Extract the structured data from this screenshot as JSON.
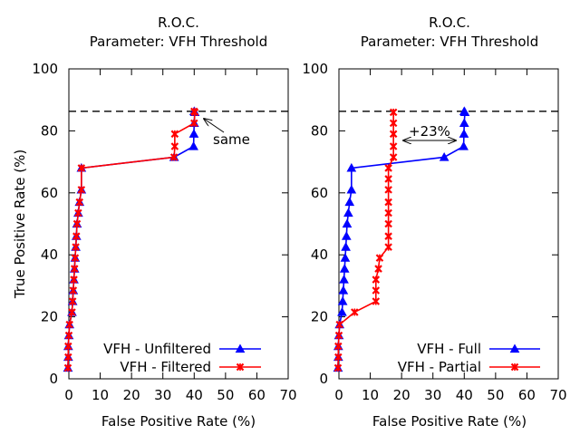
{
  "chart_data": [
    {
      "type": "line",
      "title": "R.O.C.",
      "subtitle": "Parameter: VFH Threshold",
      "xlabel": "False Positive Rate (%)",
      "ylabel": "True Positive Rate (%)",
      "xlim": [
        0,
        70
      ],
      "ylim": [
        0,
        100
      ],
      "xticks": [
        0,
        10,
        20,
        30,
        40,
        50,
        60,
        70
      ],
      "yticks": [
        0,
        20,
        40,
        60,
        80,
        100
      ],
      "reference_line": 86.3,
      "legend_position": "bottom-right",
      "annotation": "same",
      "series": [
        {
          "name": "VFH - Unfiltered",
          "color": "#0000ff",
          "marker": "triangle",
          "x": [
            -0.3,
            -0.2,
            -0.2,
            0,
            0.2,
            1,
            1.2,
            1.4,
            1.6,
            1.8,
            2,
            2.2,
            2.4,
            2.6,
            3,
            3.4,
            4,
            4,
            33.6,
            39.8,
            39.9,
            40,
            40.2,
            40
          ],
          "y": [
            3.5,
            7,
            10.5,
            14,
            17.5,
            21.5,
            25,
            28.5,
            32,
            35.5,
            39,
            42.5,
            46,
            50,
            53.5,
            57,
            61,
            68,
            71.5,
            75,
            79,
            82.5,
            86,
            86.3
          ]
        },
        {
          "name": "VFH - Filtered",
          "color": "#ff0000",
          "marker": "x",
          "x": [
            -0.3,
            -0.2,
            -0.2,
            0,
            0.2,
            1,
            1.2,
            1.4,
            1.6,
            1.8,
            2,
            2.2,
            2.4,
            2.6,
            3,
            3.4,
            4,
            4,
            33.6,
            33.8,
            33.8,
            40,
            40.2,
            40
          ],
          "y": [
            3.5,
            7,
            10.5,
            14,
            17.5,
            21.5,
            25,
            28.5,
            32,
            35.5,
            39,
            42.5,
            46,
            50,
            53.5,
            57,
            61,
            68,
            71.5,
            75,
            79,
            82.5,
            86,
            86.3
          ]
        }
      ]
    },
    {
      "type": "line",
      "title": "R.O.C.",
      "subtitle": "Parameter: VFH Threshold",
      "xlabel": "False Positive Rate (%)",
      "ylabel": "",
      "xlim": [
        0,
        70
      ],
      "ylim": [
        0,
        100
      ],
      "xticks": [
        0,
        10,
        20,
        30,
        40,
        50,
        60,
        70
      ],
      "yticks": [
        0,
        20,
        40,
        60,
        80,
        100
      ],
      "reference_line": 86.3,
      "legend_position": "bottom-right",
      "annotation": "+23%",
      "series": [
        {
          "name": "VFH - Full",
          "color": "#0000ff",
          "marker": "triangle",
          "x": [
            -0.3,
            -0.2,
            -0.2,
            0,
            0.2,
            1,
            1.2,
            1.4,
            1.6,
            1.8,
            2,
            2.2,
            2.4,
            2.6,
            3,
            3.4,
            4,
            4,
            33.6,
            39.8,
            39.9,
            40,
            40.2,
            40
          ],
          "y": [
            3.5,
            7,
            10.5,
            14,
            17.5,
            21.5,
            25,
            28.5,
            32,
            35.5,
            39,
            42.5,
            46,
            50,
            53.5,
            57,
            61,
            68,
            71.5,
            75,
            79,
            82.5,
            86,
            86.3
          ]
        },
        {
          "name": "VFH - Partial",
          "color": "#ff0000",
          "marker": "x",
          "x": [
            -0.3,
            -0.2,
            -0.2,
            0,
            0.2,
            5,
            11.8,
            11.8,
            11.8,
            12.6,
            13,
            15.8,
            15.8,
            15.8,
            15.8,
            15.8,
            15.8,
            15.8,
            15.8,
            17.4,
            17.4,
            17.4,
            17.4,
            17.4
          ],
          "y": [
            3.5,
            7,
            10.5,
            14,
            17.5,
            21.5,
            25,
            28.5,
            32,
            35.5,
            39,
            42.5,
            46,
            50,
            53.5,
            57,
            61,
            64.5,
            68,
            71.5,
            75,
            79,
            82.5,
            86
          ]
        }
      ]
    }
  ]
}
